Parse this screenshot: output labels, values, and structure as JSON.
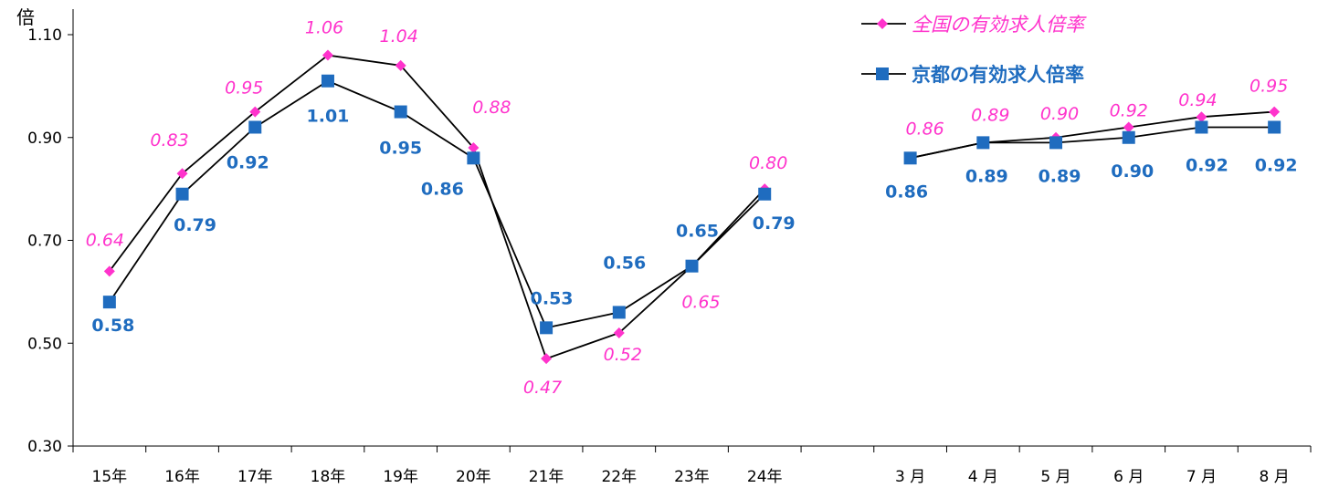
{
  "chart_data": {
    "type": "line",
    "ylabel": "倍",
    "ylim": [
      0.3,
      1.1
    ],
    "yticks": [
      "1.10",
      "0.90",
      "0.70",
      "0.50",
      "0.30"
    ],
    "categories": [
      "15年",
      "16年",
      "17年",
      "18年",
      "19年",
      "20年",
      "21年",
      "22年",
      "23年",
      "24年",
      "",
      "3 月",
      "4 月",
      "5 月",
      "6 月",
      "7 月",
      "8 月"
    ],
    "legend_position": "top-right",
    "series": [
      {
        "name": "全国の有効求人倍率",
        "color": "#ff33cc",
        "marker": "diamond",
        "segments": [
          {
            "values": [
              0.64,
              0.83,
              0.95,
              1.06,
              1.04,
              0.88,
              0.47,
              0.52,
              0.65,
              0.8
            ],
            "labels": [
              "0.64",
              "0.83",
              "0.95",
              "1.06",
              "1.04",
              "0.88",
              "0.47",
              "0.52",
              "0.65",
              "0.80"
            ]
          },
          {
            "values": [
              0.86,
              0.89,
              0.9,
              0.92,
              0.94,
              0.95
            ],
            "labels": [
              "0.86",
              "0.89",
              "0.90",
              "0.92",
              "0.94",
              "0.95"
            ]
          }
        ]
      },
      {
        "name": "京都の有効求人倍率",
        "color": "#1f6cbf",
        "marker": "square",
        "segments": [
          {
            "values": [
              0.58,
              0.79,
              0.92,
              1.01,
              0.95,
              0.86,
              0.53,
              0.56,
              0.65,
              0.79
            ],
            "labels": [
              "0.58",
              "0.79",
              "0.92",
              "1.01",
              "0.95",
              "0.86",
              "0.53",
              "0.56",
              "0.65",
              "0.79"
            ]
          },
          {
            "values": [
              0.86,
              0.89,
              0.89,
              0.9,
              0.92,
              0.92
            ],
            "labels": [
              "0.86",
              "0.89",
              "0.89",
              "0.90",
              "0.92",
              "0.92"
            ]
          }
        ]
      }
    ]
  }
}
